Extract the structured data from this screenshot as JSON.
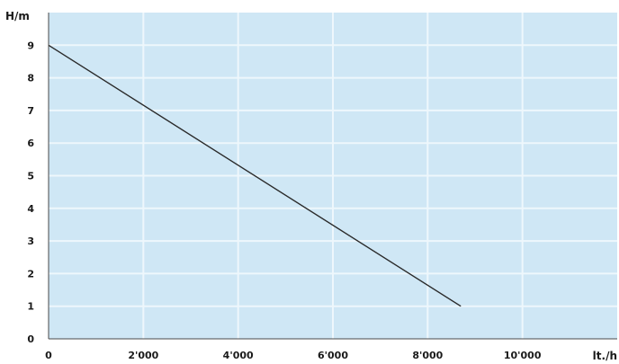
{
  "chart_data": {
    "type": "line",
    "title": "",
    "xlabel": "lt./h",
    "ylabel": "H/m",
    "xlim": [
      0,
      12000
    ],
    "ylim": [
      0,
      10
    ],
    "x_ticks": [
      0,
      2000,
      4000,
      6000,
      8000,
      10000
    ],
    "x_tick_labels": [
      "0",
      "2'000",
      "4'000",
      "6'000",
      "8'000",
      "10'000"
    ],
    "y_ticks": [
      0,
      1,
      2,
      3,
      4,
      5,
      6,
      7,
      8,
      9
    ],
    "y_tick_labels": [
      "0",
      "1",
      "2",
      "3",
      "4",
      "5",
      "6",
      "7",
      "8",
      "9"
    ],
    "grid": true,
    "legend": "none",
    "colors": {
      "plot_background": "#cfe7f5",
      "gridline": "#eef7fc",
      "series_line": "#2a2a2a",
      "axis": "#4a4a4a"
    },
    "series": [
      {
        "x": [
          0,
          8700
        ],
        "y": [
          9,
          1
        ]
      }
    ]
  }
}
